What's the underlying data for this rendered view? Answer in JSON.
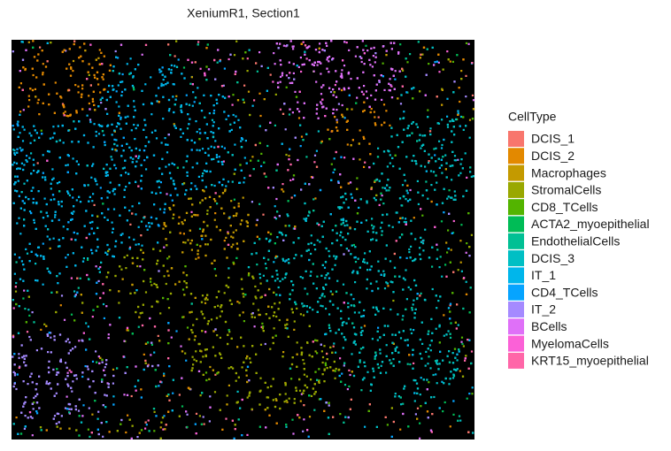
{
  "chart_data": {
    "type": "spatial-scatter",
    "title": "XeniumR1, Section1",
    "legend_title": "CellType",
    "categories": [
      "DCIS_1",
      "DCIS_2",
      "Macrophages",
      "StromalCells",
      "CD8_TCells",
      "ACTA2_myoepithelial",
      "EndothelialCells",
      "DCIS_3",
      "IT_1",
      "CD4_TCells",
      "IT_2",
      "BCells",
      "MyelomaCells",
      "KRT15_myoepithelial"
    ],
    "colors": [
      "#F8766D",
      "#E38900",
      "#C49A00",
      "#99A800",
      "#53B400",
      "#00BC56",
      "#00C094",
      "#00BFC4",
      "#00B6EB",
      "#06A4FF",
      "#A58AFF",
      "#DF70F8",
      "#FB61D7",
      "#FF66A8"
    ],
    "background": "#000000"
  }
}
